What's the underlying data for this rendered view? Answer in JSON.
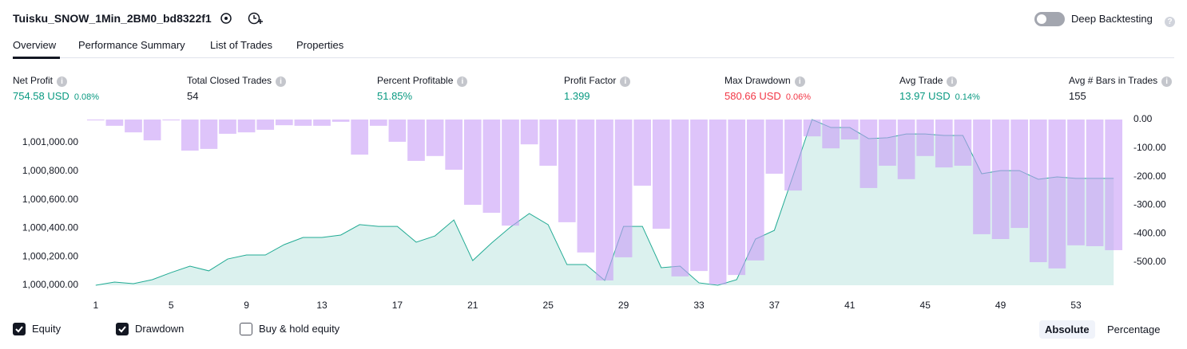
{
  "header": {
    "title": "Tuisku_SNOW_1Min_2BM0_bd8322f1",
    "deep_backtesting": "Deep Backtesting"
  },
  "tabs": [
    "Overview",
    "Performance Summary",
    "List of Trades",
    "Properties"
  ],
  "metrics": [
    {
      "label": "Net Profit",
      "value": "754.58 USD",
      "percent": "0.08%",
      "color": "#089981"
    },
    {
      "label": "Total Closed Trades",
      "value": "54",
      "color": "#131722"
    },
    {
      "label": "Percent Profitable",
      "value": "51.85%",
      "color": "#089981"
    },
    {
      "label": "Profit Factor",
      "value": "1.399",
      "color": "#089981"
    },
    {
      "label": "Max Drawdown",
      "value": "580.66 USD",
      "percent": "0.06%",
      "color": "#f23645"
    },
    {
      "label": "Avg Trade",
      "value": "13.97 USD",
      "percent": "0.14%",
      "color": "#089981"
    },
    {
      "label": "Avg # Bars in Trades",
      "value": "155",
      "color": "#131722"
    }
  ],
  "chart_data": {
    "type": "combo",
    "x": [
      1,
      2,
      3,
      4,
      5,
      6,
      7,
      8,
      9,
      10,
      11,
      12,
      13,
      14,
      15,
      16,
      17,
      18,
      19,
      20,
      21,
      22,
      23,
      24,
      25,
      26,
      27,
      28,
      29,
      30,
      31,
      32,
      33,
      34,
      35,
      36,
      37,
      38,
      39,
      40,
      41,
      42,
      43,
      44,
      45,
      46,
      47,
      48,
      49,
      50,
      51,
      52,
      53,
      54,
      55
    ],
    "xlim": [
      0.5,
      55.5
    ],
    "xticks": [
      1,
      5,
      9,
      13,
      17,
      21,
      25,
      29,
      33,
      37,
      41,
      45,
      49,
      53
    ],
    "ylim": [
      1000000,
      1001162
    ],
    "yticks": [
      {
        "value": 1000000,
        "label": "1,000,000.00"
      },
      {
        "value": 1000200,
        "label": "1,000,200.00"
      },
      {
        "value": 1000400,
        "label": "1,000,400.00"
      },
      {
        "value": 1000600,
        "label": "1,000,600.00"
      },
      {
        "value": 1000800,
        "label": "1,000,800.00"
      },
      {
        "value": 1001000,
        "label": "1,001,000.00"
      }
    ],
    "y2lim": [
      -581,
      0
    ],
    "y2ticks": [
      {
        "value": 0,
        "label": "0.00"
      },
      {
        "value": -100,
        "label": "-100.00"
      },
      {
        "value": -200,
        "label": "-200.00"
      },
      {
        "value": -300,
        "label": "-300.00"
      },
      {
        "value": -400,
        "label": "-400.00"
      },
      {
        "value": -500,
        "label": "-500.00"
      }
    ],
    "series": [
      {
        "name": "Equity",
        "type": "area",
        "color": "#22ab94",
        "checked": true,
        "values": [
          1000000,
          1000022,
          1000011,
          1000039,
          1000089,
          1000134,
          1000101,
          1000184,
          1000212,
          1000212,
          1000285,
          1000335,
          1000335,
          1000352,
          1000425,
          1000413,
          1000413,
          1000302,
          1000346,
          1000458,
          1000173,
          1000296,
          1000408,
          1000503,
          1000425,
          1000145,
          1000145,
          1000034,
          1000413,
          1000413,
          1000123,
          1000134,
          1000017,
          1000000,
          1000039,
          1000324,
          1000385,
          1000771,
          1001162,
          1001106,
          1001106,
          1001028,
          1001034,
          1001061,
          1001061,
          1001050,
          1001050,
          1000782,
          1000804,
          1000804,
          1000743,
          1000760,
          1000749,
          1000749,
          1000749
        ]
      },
      {
        "name": "Drawdown",
        "type": "bar",
        "axis": "y2",
        "color": "#c89cf6",
        "checked": true,
        "values": [
          -3,
          -22,
          -45,
          -73,
          -3,
          -109,
          -103,
          -50,
          -45,
          -36,
          -20,
          -22,
          -22,
          -8,
          -123,
          -22,
          -78,
          -145,
          -128,
          -176,
          -299,
          -327,
          -372,
          -87,
          -162,
          -360,
          -466,
          -564,
          -483,
          -232,
          -383,
          -550,
          -531,
          -578,
          -545,
          -494,
          -190,
          -249,
          -59,
          -101,
          -70,
          -240,
          -162,
          -209,
          -128,
          -168,
          -162,
          -402,
          -419,
          -380,
          -500,
          -522,
          -441,
          -444,
          -458
        ]
      }
    ]
  },
  "controls": {
    "buy_hold": {
      "label": "Buy & hold equity",
      "checked": false
    },
    "modes": [
      "Absolute",
      "Percentage"
    ],
    "active_mode": "Absolute"
  }
}
